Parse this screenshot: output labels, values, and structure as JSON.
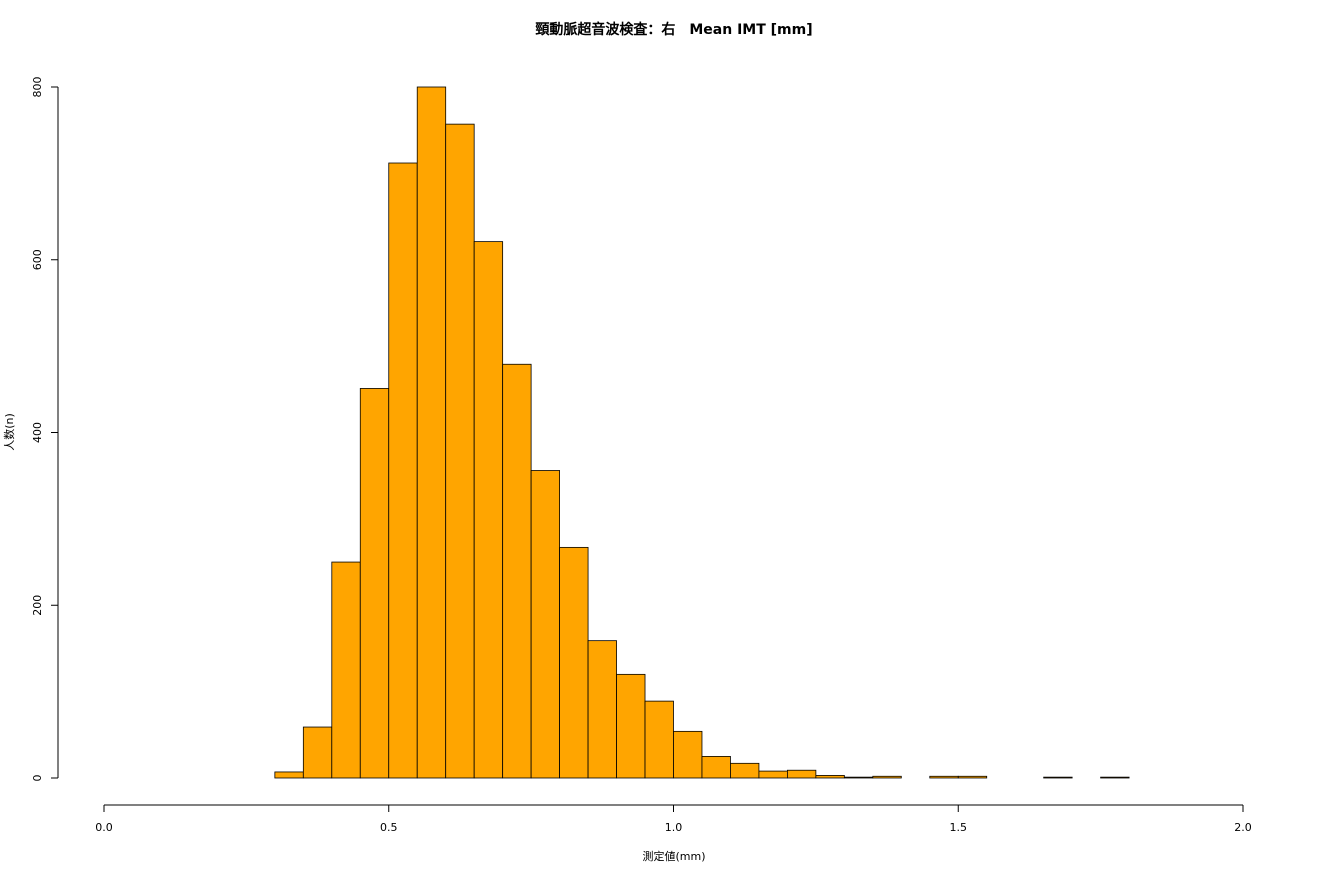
{
  "chart_data": {
    "type": "histogram",
    "title": "頸動脈超音波検査：右　Mean IMT [mm]",
    "x_label": "測定値(mm)",
    "y_label": "人数(n)",
    "bins": [
      0.3,
      0.35,
      0.4,
      0.45,
      0.5,
      0.55,
      0.6,
      0.65,
      0.7,
      0.75,
      0.8,
      0.85,
      0.9,
      0.95,
      1.0,
      1.05,
      1.1,
      1.15,
      1.2,
      1.25,
      1.3,
      1.35,
      1.4,
      1.45,
      1.5,
      1.55,
      1.6,
      1.65,
      1.7,
      1.75,
      1.8
    ],
    "values": [
      7,
      59,
      250,
      451,
      712,
      800,
      757,
      621,
      479,
      356,
      267,
      159,
      120,
      89,
      54,
      25,
      17,
      8,
      9,
      3,
      1,
      2,
      0,
      2,
      2,
      0,
      0,
      1,
      0,
      1
    ],
    "color": "#ffa500",
    "xlim": [
      0,
      2
    ],
    "xticks": [
      {
        "value": 0,
        "label": "0.0"
      },
      0.5,
      {
        "value": 1,
        "label": "1.0"
      },
      1.5,
      {
        "value": 2,
        "label": "2.0"
      }
    ],
    "ylim": [
      0,
      800
    ],
    "yticks": [
      0,
      200,
      400,
      600,
      800
    ],
    "grid": false
  }
}
